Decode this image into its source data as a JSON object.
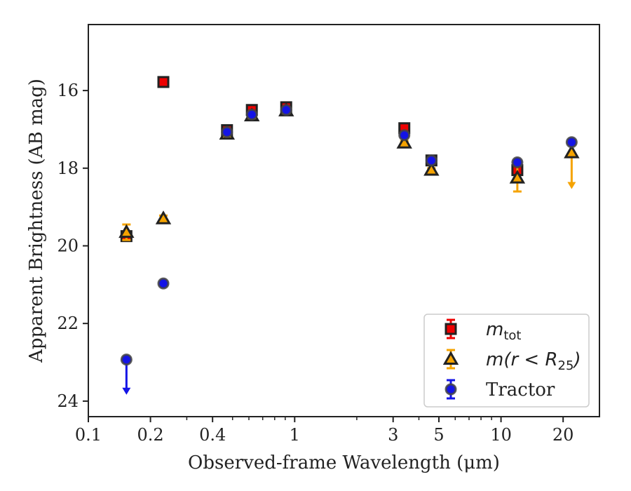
{
  "chart_data": {
    "type": "scatter",
    "xlabel": "Observed-frame Wavelength (μm)",
    "ylabel": "Apparent Brightness (AB mag)",
    "xscale": "log",
    "xlim": [
      0.1,
      30
    ],
    "ylim": [
      24.4,
      14.3
    ],
    "y_inverted": true,
    "grid": false,
    "legend_position": "lower-right",
    "x_ticks": [
      {
        "value": 0.1,
        "label": "0.1"
      },
      {
        "value": 0.2,
        "label": "0.2"
      },
      {
        "value": 0.4,
        "label": "0.4"
      },
      {
        "value": 1,
        "label": "1"
      },
      {
        "value": 3,
        "label": "3"
      },
      {
        "value": 5,
        "label": "5"
      },
      {
        "value": 10,
        "label": "10"
      },
      {
        "value": 20,
        "label": "20"
      }
    ],
    "y_ticks": [
      {
        "value": 16,
        "label": "16"
      },
      {
        "value": 18,
        "label": "18"
      },
      {
        "value": 20,
        "label": "20"
      },
      {
        "value": 22,
        "label": "22"
      },
      {
        "value": 24,
        "label": "24"
      }
    ],
    "series": [
      {
        "name": "m_tot",
        "marker": "square",
        "color": "#ee0000",
        "edge_color": "#222222",
        "points": [
          {
            "x": 0.153,
            "y": 19.75,
            "err": 0.1
          },
          {
            "x": 0.231,
            "y": 15.78,
            "err": 0.05
          },
          {
            "x": 0.47,
            "y": 17.02,
            "err": 0.05
          },
          {
            "x": 0.62,
            "y": 16.5,
            "err": 0.05
          },
          {
            "x": 0.91,
            "y": 16.43,
            "err": 0.05
          },
          {
            "x": 3.4,
            "y": 16.97,
            "err": 0.05
          },
          {
            "x": 4.6,
            "y": 17.8,
            "err": 0.05
          },
          {
            "x": 12.0,
            "y": 18.05,
            "err": 0.1
          }
        ]
      },
      {
        "name": "m(r < R25)",
        "marker": "triangle",
        "color": "#f5a300",
        "edge_color": "#222222",
        "points": [
          {
            "x": 0.153,
            "y": 19.65,
            "err": 0.2
          },
          {
            "x": 0.231,
            "y": 19.3,
            "err": 0.08
          },
          {
            "x": 0.47,
            "y": 17.12,
            "err": 0.05
          },
          {
            "x": 0.62,
            "y": 16.65,
            "err": 0.05
          },
          {
            "x": 0.91,
            "y": 16.52,
            "err": 0.05
          },
          {
            "x": 3.4,
            "y": 17.35,
            "err": 0.05
          },
          {
            "x": 4.6,
            "y": 18.05,
            "err": 0.05
          },
          {
            "x": 12.0,
            "y": 18.25,
            "err": 0.35
          },
          {
            "x": 22.0,
            "y": 17.6,
            "upper_limit": true,
            "arrow_to": 18.5
          }
        ]
      },
      {
        "name": "Tractor",
        "marker": "circle",
        "color": "#1414e6",
        "edge_color": "#444444",
        "points": [
          {
            "x": 0.153,
            "y": 22.93,
            "upper_limit": true,
            "arrow_to": 23.8
          },
          {
            "x": 0.231,
            "y": 20.97,
            "err": 0.05
          },
          {
            "x": 0.47,
            "y": 17.07,
            "err": 0.05
          },
          {
            "x": 0.62,
            "y": 16.62,
            "err": 0.05
          },
          {
            "x": 0.91,
            "y": 16.5,
            "err": 0.05
          },
          {
            "x": 3.4,
            "y": 17.15,
            "err": 0.05
          },
          {
            "x": 4.6,
            "y": 17.8,
            "err": 0.05
          },
          {
            "x": 12.0,
            "y": 17.85,
            "err": 0.05
          },
          {
            "x": 22.0,
            "y": 17.33,
            "err": 0.05
          }
        ]
      }
    ],
    "legend": [
      {
        "series": "m_tot",
        "label_base": "m",
        "label_sub": "tot",
        "label_tail": ""
      },
      {
        "series": "m(r < R25)",
        "label_base": "m(r < R",
        "label_sub": "25",
        "label_tail": ")"
      },
      {
        "series": "Tractor",
        "label_base": "Tractor",
        "label_sub": "",
        "label_tail": ""
      }
    ]
  }
}
